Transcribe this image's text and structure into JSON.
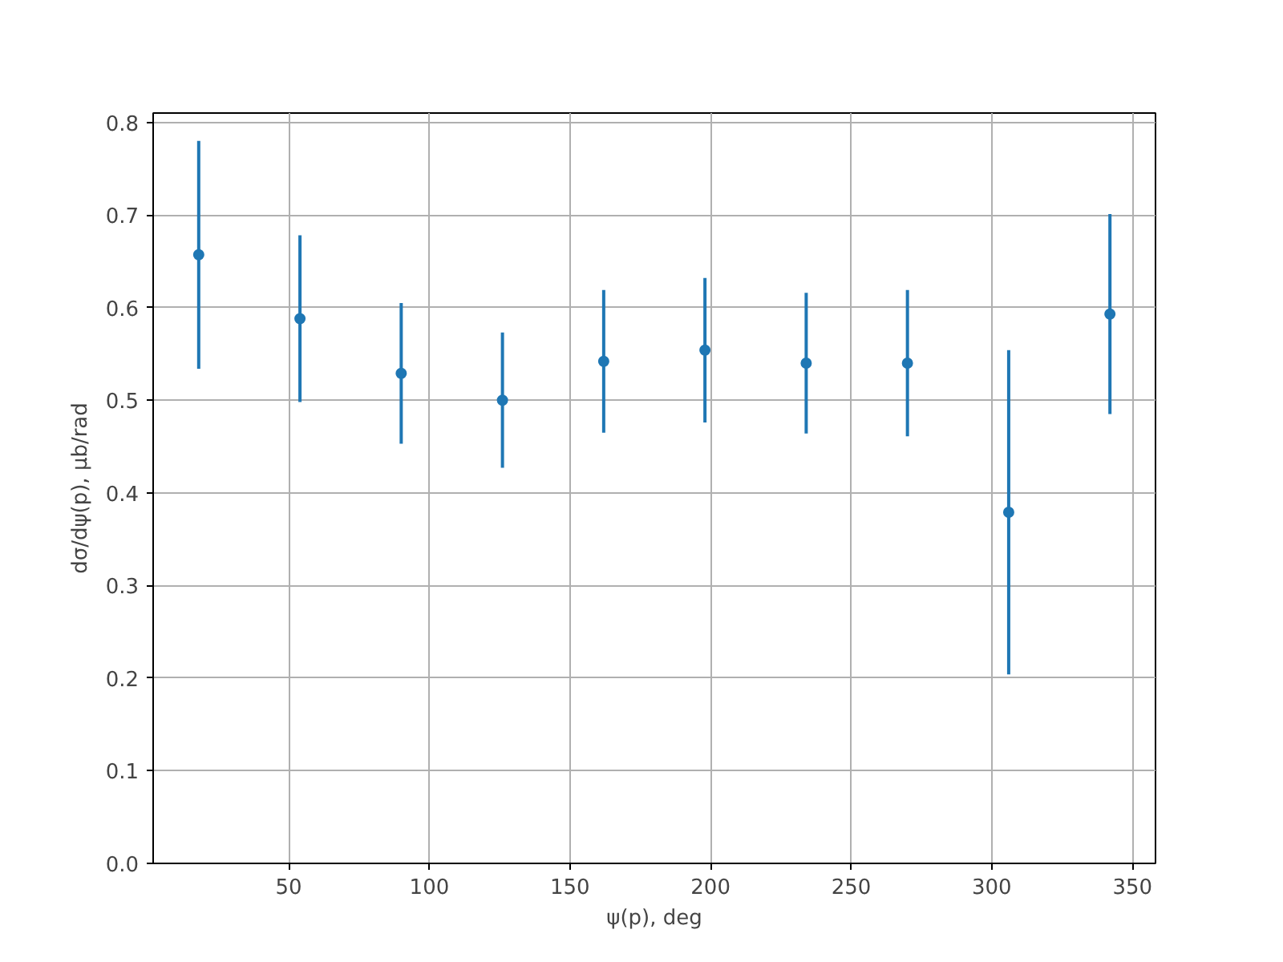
{
  "chart_data": {
    "type": "scatter",
    "xlabel": "ψ(p), deg",
    "ylabel": "dσ/dψ(p), μb/rad",
    "x": [
      18,
      54,
      90,
      126,
      162,
      198,
      234,
      270,
      306,
      342
    ],
    "series": [
      {
        "color": "#1f77b4",
        "values": [
          0.657,
          0.588,
          0.529,
          0.5,
          0.542,
          0.554,
          0.54,
          0.54,
          0.379,
          0.593
        ],
        "errors": [
          0.123,
          0.09,
          0.076,
          0.073,
          0.077,
          0.078,
          0.076,
          0.079,
          0.175,
          0.108
        ]
      }
    ],
    "xlim": [
      1.8,
      358.2
    ],
    "ylim": [
      0,
      0.81
    ],
    "xticks": [
      50,
      100,
      150,
      200,
      250,
      300,
      350
    ],
    "yticks": [
      {
        "value": 0,
        "label": "0.0"
      },
      0.1,
      0.2,
      0.3,
      0.4,
      0.5,
      0.6,
      0.7,
      0.8
    ],
    "grid": true,
    "marker": "circle"
  }
}
